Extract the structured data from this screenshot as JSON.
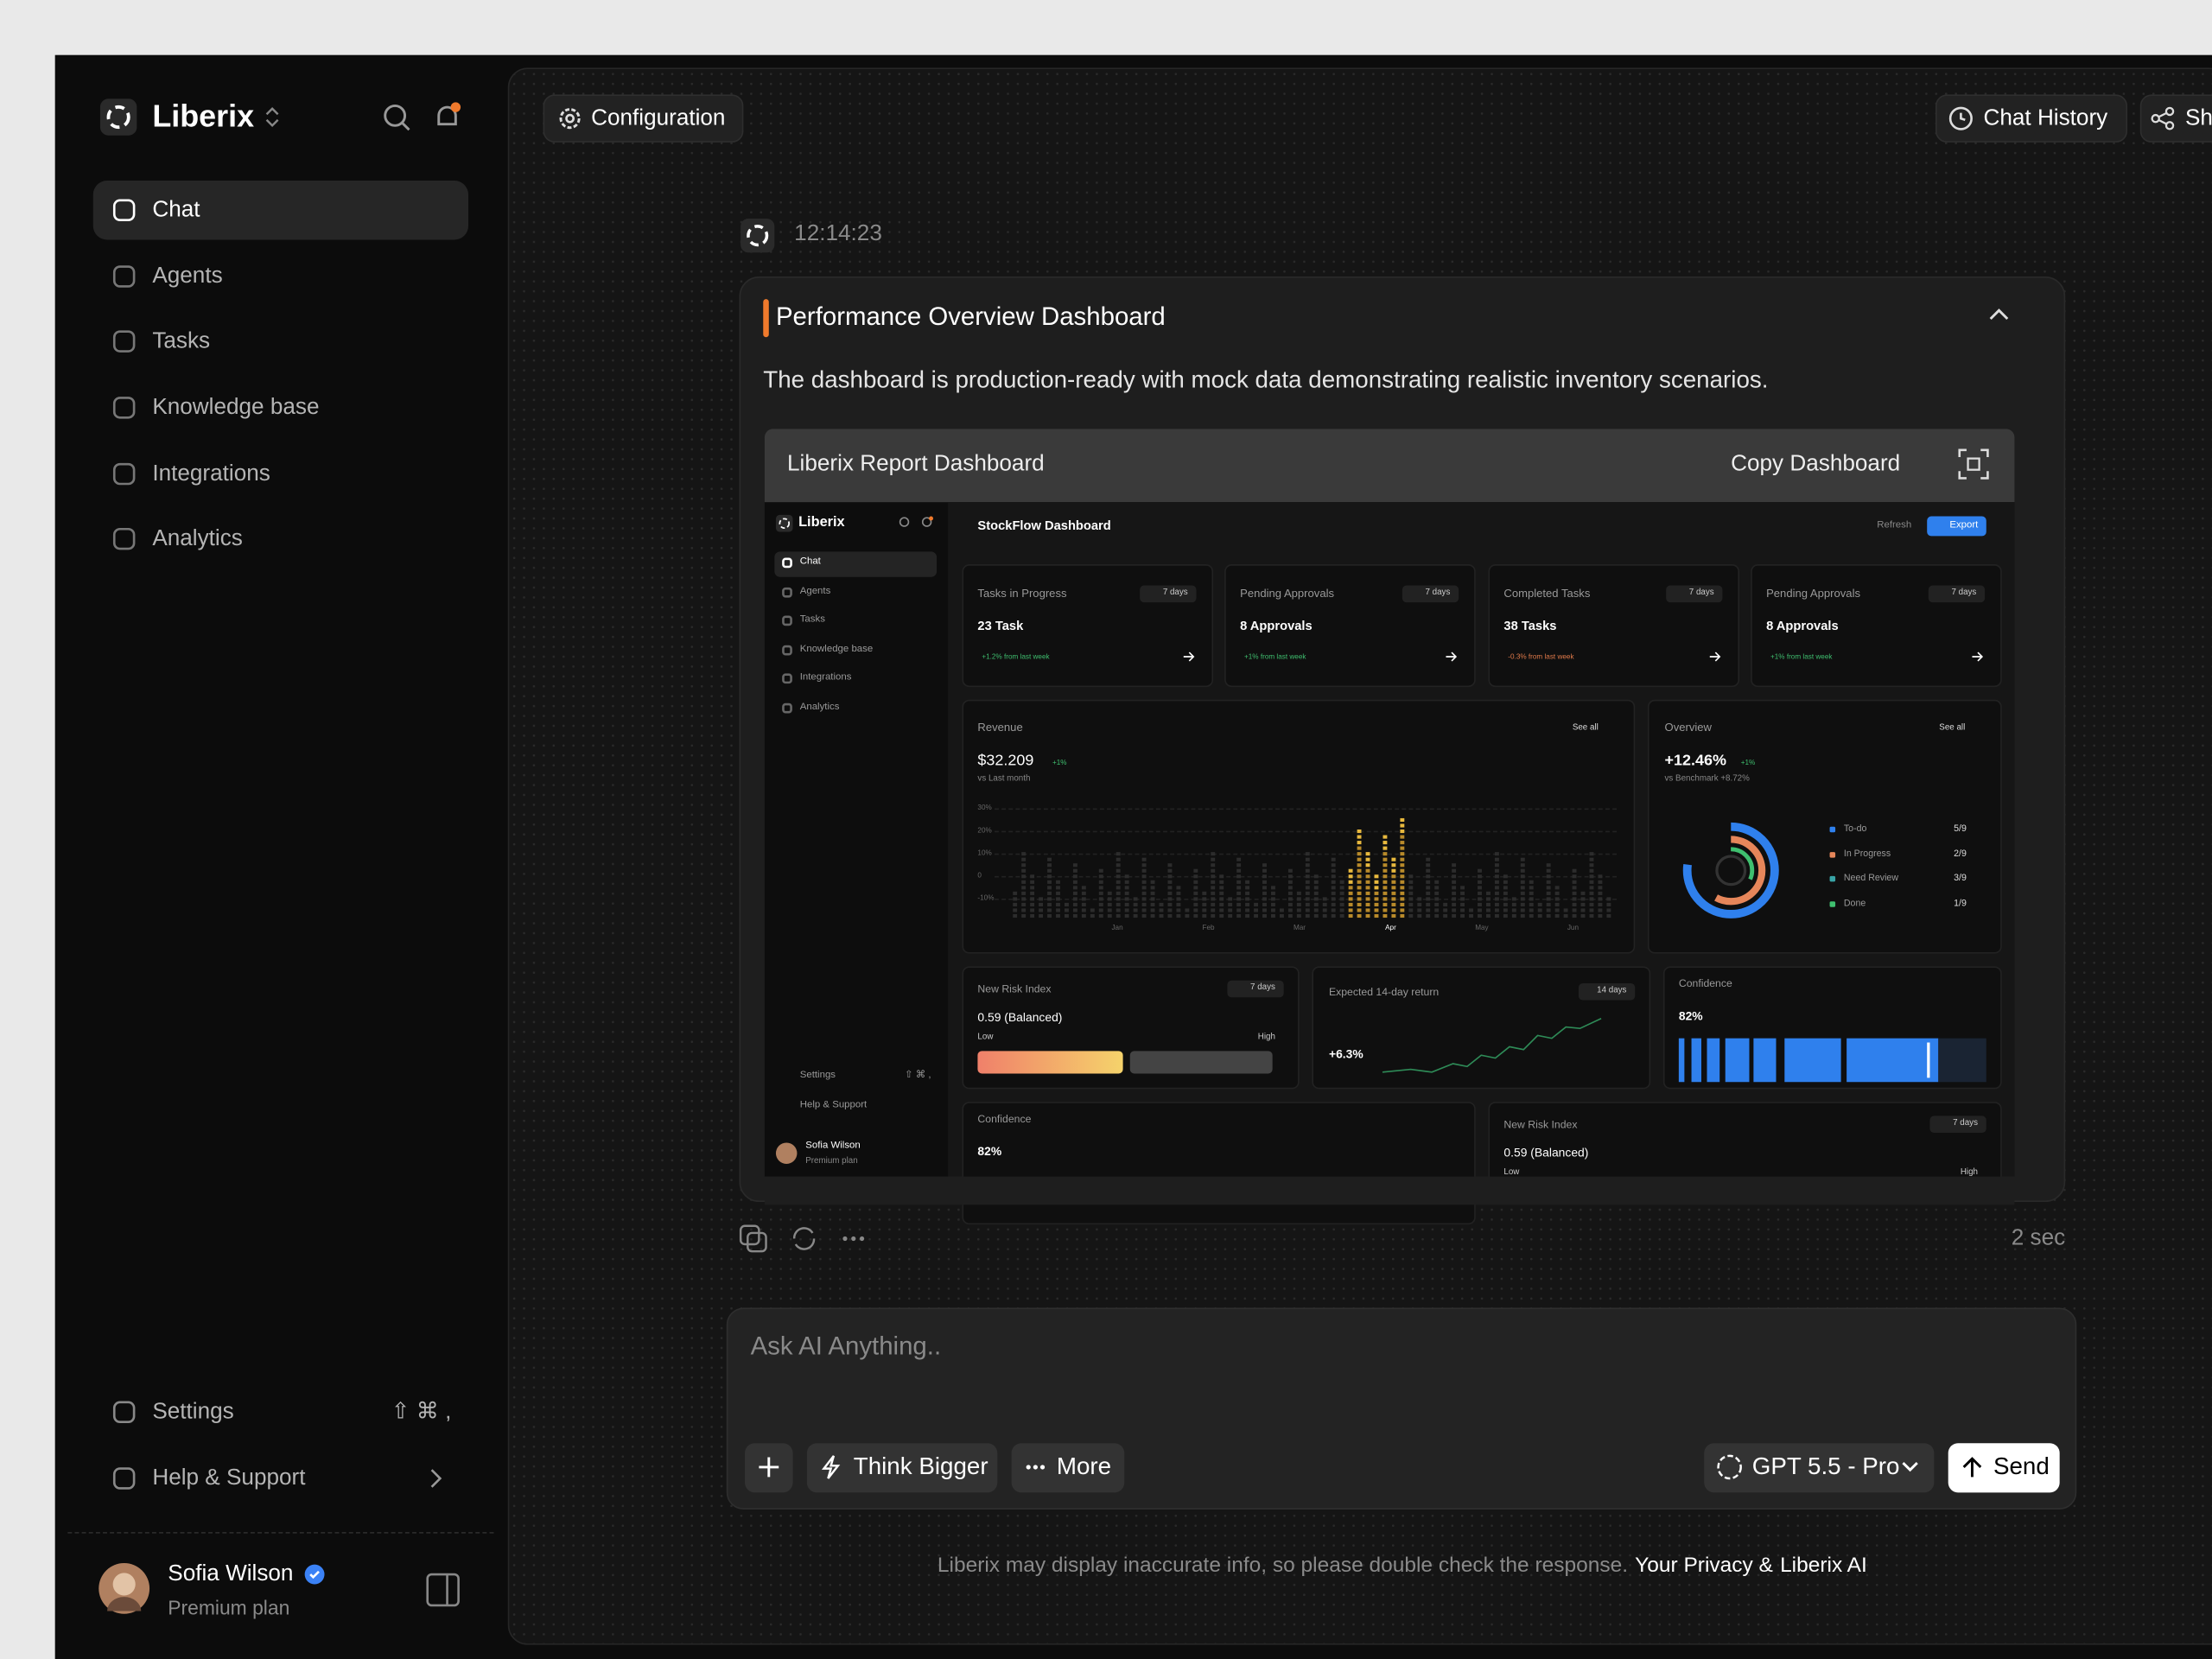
{
  "sidebar": {
    "brand": "Liberix",
    "nav": [
      "Chat",
      "Agents",
      "Tasks",
      "Knowledge base",
      "Integrations",
      "Analytics"
    ],
    "settings": "Settings",
    "settings_shortcut": "⇧ ⌘ ,",
    "help": "Help & Support",
    "user": {
      "name": "Sofia Wilson",
      "plan": "Premium plan"
    }
  },
  "topbar": {
    "configuration": "Configuration",
    "chat_history": "Chat History",
    "share": "Share"
  },
  "message": {
    "time": "12:14:23",
    "title": "Performance Overview Dashboard",
    "text": "The dashboard is production-ready with mock data demonstrating realistic inventory scenarios.",
    "preview_title": "Liberix Report Dashboard",
    "copy": "Copy Dashboard",
    "duration": "2 sec"
  },
  "preview": {
    "brand": "Liberix",
    "nav": [
      "Chat",
      "Agents",
      "Tasks",
      "Knowledge base",
      "Integrations",
      "Analytics"
    ],
    "settings": "Settings",
    "settings_shortcut": "⇧ ⌘ ,",
    "help": "Help & Support",
    "user": {
      "name": "Sofia Wilson",
      "plan": "Premium plan"
    },
    "title": "StockFlow Dashboard",
    "refresh": "Refresh",
    "export": "Export",
    "cards": [
      {
        "label": "Tasks in Progress",
        "range": "7 days",
        "value": "23 Task",
        "delta": "+1.2% from last week"
      },
      {
        "label": "Pending Approvals",
        "range": "7 days",
        "value": "8 Approvals",
        "delta": "+1% from last week"
      },
      {
        "label": "Completed Tasks",
        "range": "7 days",
        "value": "38 Tasks",
        "delta": "-0.3% from last week"
      },
      {
        "label": "Pending Approvals",
        "range": "7 days",
        "value": "8 Approvals",
        "delta": "+1% from last week"
      }
    ],
    "revenue": {
      "title": "Revenue",
      "see_all": "See all",
      "value": "$32.209",
      "badge": "+1%",
      "sub": "vs Last month",
      "yticks": [
        "30%",
        "20%",
        "10%",
        "0",
        "-10%"
      ],
      "months": [
        "Jan",
        "Feb",
        "Mar",
        "Apr",
        "May",
        "Jun"
      ]
    },
    "overview": {
      "title": "Overview",
      "see_all": "See all",
      "value": "+12.46%",
      "badge": "+1%",
      "sub": "vs Benchmark +8.72%",
      "legend": [
        {
          "name": "To-do",
          "count": "5/9"
        },
        {
          "name": "In Progress",
          "count": "2/9"
        },
        {
          "name": "Need Review",
          "count": "3/9"
        },
        {
          "name": "Done",
          "count": "1/9"
        }
      ]
    },
    "risk": {
      "title": "New Risk Index",
      "range": "7 days",
      "value": "0.59 (Balanced)",
      "low": "Low",
      "high": "High"
    },
    "return": {
      "title": "Expected 14-day return",
      "range": "14 days",
      "value": "+6.3%"
    },
    "confidence": {
      "title": "Confidence",
      "value": "82%"
    },
    "confidence2": {
      "title": "Confidence",
      "value": "82%"
    },
    "risk2": {
      "title": "New Risk Index",
      "range": "7 days",
      "value": "0.59 (Balanced)",
      "low": "Low",
      "high": "High"
    }
  },
  "composer": {
    "placeholder": "Ask AI Anything..",
    "think": "Think Bigger",
    "more": "More",
    "model": "GPT 5.5 - Pro",
    "send": "Send"
  },
  "footer": {
    "note": "Liberix may display inaccurate info, so please double check the response.",
    "privacy": "Your Privacy &",
    "brand": "Liberix AI"
  }
}
